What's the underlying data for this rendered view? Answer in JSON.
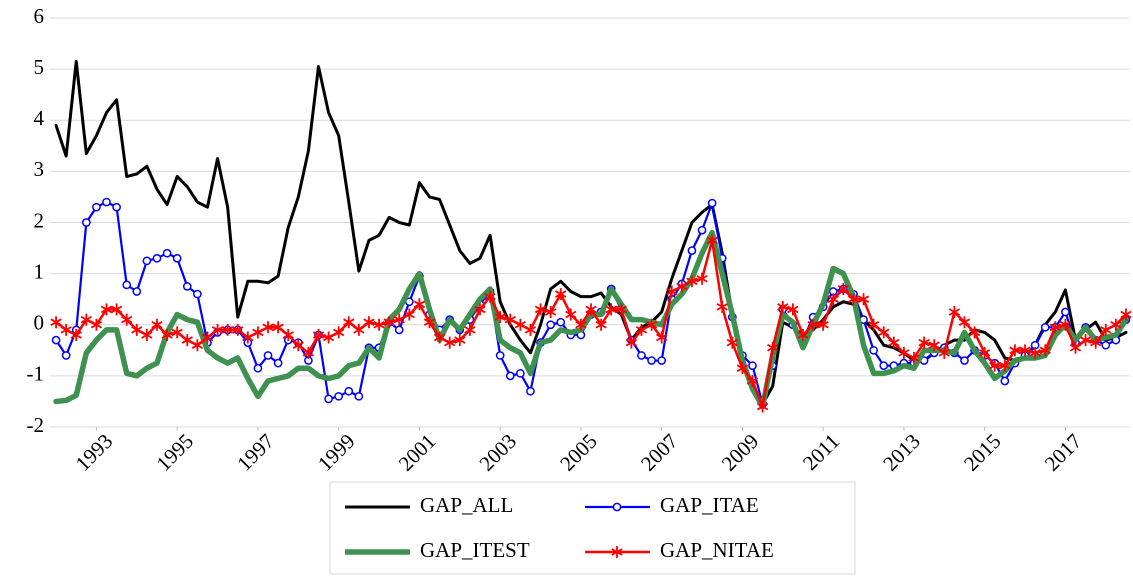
{
  "chart_data": {
    "type": "line",
    "x": [
      1992,
      1992.25,
      1992.5,
      1992.75,
      1993,
      1993.25,
      1993.5,
      1993.75,
      1994,
      1994.25,
      1994.5,
      1994.75,
      1995,
      1995.25,
      1995.5,
      1995.75,
      1996,
      1996.25,
      1996.5,
      1996.75,
      1997,
      1997.25,
      1997.5,
      1997.75,
      1998,
      1998.25,
      1998.5,
      1998.75,
      1999,
      1999.25,
      1999.5,
      1999.75,
      2000,
      2000.25,
      2000.5,
      2000.75,
      2001,
      2001.25,
      2001.5,
      2001.75,
      2002,
      2002.25,
      2002.5,
      2002.75,
      2003,
      2003.25,
      2003.5,
      2003.75,
      2004,
      2004.25,
      2004.5,
      2004.75,
      2005,
      2005.25,
      2005.5,
      2005.75,
      2006,
      2006.25,
      2006.5,
      2006.75,
      2007,
      2007.25,
      2007.5,
      2007.75,
      2008,
      2008.25,
      2008.5,
      2008.75,
      2009,
      2009.25,
      2009.5,
      2009.75,
      2010,
      2010.25,
      2010.5,
      2010.75,
      2011,
      2011.25,
      2011.5,
      2011.75,
      2012,
      2012.25,
      2012.5,
      2012.75,
      2013,
      2013.25,
      2013.5,
      2013.75,
      2014,
      2014.25,
      2014.5,
      2014.75,
      2015,
      2015.25,
      2015.5,
      2015.75,
      2016,
      2016.25,
      2016.5,
      2016.75,
      2017,
      2017.25,
      2017.5,
      2017.75,
      2018,
      2018.25,
      2018.5
    ],
    "series": [
      {
        "name": "GAP_ALL",
        "color": "#000000",
        "values": [
          3.9,
          3.3,
          5.15,
          3.35,
          3.7,
          4.15,
          4.4,
          2.9,
          2.95,
          3.1,
          2.65,
          2.35,
          2.9,
          2.7,
          2.4,
          2.3,
          3.25,
          2.3,
          0.15,
          0.85,
          0.85,
          0.82,
          0.95,
          1.9,
          2.5,
          3.4,
          5.05,
          4.15,
          3.7,
          2.4,
          1.05,
          1.65,
          1.75,
          2.1,
          2.0,
          1.95,
          2.78,
          2.5,
          2.45,
          1.95,
          1.45,
          1.2,
          1.3,
          1.75,
          0.45,
          0.0,
          -0.3,
          -0.55,
          0.0,
          0.7,
          0.85,
          0.65,
          0.55,
          0.55,
          0.62,
          0.35,
          0.2,
          -0.3,
          -0.05,
          0.05,
          0.25,
          0.9,
          1.45,
          2.0,
          2.2,
          2.35,
          1.4,
          0.2,
          -0.6,
          -1.3,
          -1.55,
          -1.2,
          0.05,
          -0.05,
          -0.2,
          -0.1,
          0.1,
          0.35,
          0.45,
          0.4,
          0.1,
          -0.1,
          -0.4,
          -0.45,
          -0.55,
          -0.7,
          -0.7,
          -0.55,
          -0.4,
          -0.3,
          -0.3,
          -0.1,
          -0.15,
          -0.3,
          -0.65,
          -0.7,
          -0.65,
          -0.4,
          0.0,
          0.25,
          0.68,
          -0.3,
          -0.1,
          0.05,
          -0.3,
          -0.25,
          -0.15
        ]
      },
      {
        "name": "GAP_ITAE",
        "color": "#0000ff",
        "marker": "circle",
        "values": [
          -0.3,
          -0.6,
          -0.1,
          2.0,
          2.3,
          2.4,
          2.3,
          0.78,
          0.65,
          1.25,
          1.3,
          1.4,
          1.3,
          0.75,
          0.6,
          -0.35,
          -0.15,
          -0.1,
          -0.1,
          -0.35,
          -0.85,
          -0.6,
          -0.75,
          -0.3,
          -0.35,
          -0.7,
          -0.2,
          -1.45,
          -1.4,
          -1.3,
          -1.4,
          -0.45,
          -0.45,
          0.05,
          -0.1,
          0.45,
          0.95,
          0.2,
          -0.1,
          0.1,
          -0.1,
          0.1,
          0.4,
          0.65,
          -0.6,
          -1.0,
          -0.95,
          -1.3,
          -0.35,
          0.0,
          0.05,
          -0.2,
          -0.2,
          0.2,
          0.25,
          0.7,
          0.3,
          -0.3,
          -0.6,
          -0.7,
          -0.7,
          0.5,
          0.8,
          1.45,
          1.85,
          2.38,
          1.3,
          0.15,
          -0.6,
          -0.8,
          -1.55,
          -0.8,
          0.3,
          0.0,
          -0.3,
          0.15,
          0.35,
          0.65,
          0.7,
          0.6,
          0.1,
          -0.5,
          -0.8,
          -0.8,
          -0.75,
          -0.75,
          -0.7,
          -0.55,
          -0.45,
          -0.55,
          -0.7,
          -0.5,
          -0.6,
          -0.75,
          -1.1,
          -0.75,
          -0.6,
          -0.4,
          -0.05,
          -0.05,
          0.25,
          -0.35,
          -0.05,
          -0.3,
          -0.4,
          -0.3,
          0.1
        ]
      },
      {
        "name": "GAP_ITEST",
        "color": "#3f9150",
        "values": [
          -1.5,
          -1.48,
          -1.38,
          -0.55,
          -0.3,
          -0.1,
          -0.1,
          -0.95,
          -1.0,
          -0.85,
          -0.75,
          -0.15,
          0.2,
          0.1,
          0.05,
          -0.5,
          -0.65,
          -0.75,
          -0.65,
          -1.05,
          -1.4,
          -1.1,
          -1.05,
          -1.0,
          -0.85,
          -0.85,
          -1.0,
          -1.05,
          -1.0,
          -0.8,
          -0.75,
          -0.45,
          -0.65,
          0.1,
          0.3,
          0.7,
          1.0,
          0.3,
          -0.3,
          0.1,
          -0.1,
          0.2,
          0.5,
          0.7,
          -0.3,
          -0.45,
          -0.55,
          -0.95,
          -0.35,
          -0.3,
          -0.1,
          -0.15,
          -0.1,
          0.2,
          0.2,
          0.7,
          0.4,
          0.1,
          0.1,
          0.05,
          0.0,
          0.4,
          0.6,
          0.9,
          1.4,
          1.8,
          1.0,
          0.2,
          -0.7,
          -1.25,
          -1.6,
          -0.6,
          0.2,
          0.05,
          -0.45,
          0.0,
          0.4,
          1.1,
          1.0,
          0.55,
          -0.4,
          -0.95,
          -0.95,
          -0.9,
          -0.8,
          -0.85,
          -0.5,
          -0.5,
          -0.5,
          -0.55,
          -0.15,
          -0.5,
          -0.75,
          -1.05,
          -0.9,
          -0.7,
          -0.65,
          -0.65,
          -0.6,
          -0.2,
          0.0,
          -0.3,
          -0.05,
          -0.3,
          -0.25,
          -0.2,
          0.1
        ]
      },
      {
        "name": "GAP_NITAE",
        "color": "#ff0000",
        "marker": "star",
        "values": [
          0.05,
          -0.1,
          -0.2,
          0.1,
          0.0,
          0.3,
          0.3,
          0.1,
          -0.1,
          -0.2,
          0.0,
          -0.2,
          -0.15,
          -0.3,
          -0.4,
          -0.25,
          -0.1,
          -0.1,
          -0.1,
          -0.25,
          -0.15,
          -0.05,
          -0.05,
          -0.2,
          -0.4,
          -0.55,
          -0.2,
          -0.25,
          -0.15,
          0.05,
          -0.1,
          0.05,
          0.0,
          0.05,
          0.1,
          0.2,
          0.4,
          0.05,
          -0.25,
          -0.35,
          -0.3,
          -0.1,
          0.3,
          0.55,
          0.15,
          0.1,
          0.0,
          -0.1,
          0.3,
          0.25,
          0.6,
          0.2,
          0.0,
          0.3,
          0.0,
          0.3,
          0.3,
          -0.35,
          -0.1,
          0.0,
          -0.25,
          0.65,
          0.75,
          0.85,
          0.9,
          1.65,
          0.35,
          -0.35,
          -0.85,
          -1.1,
          -1.6,
          -0.45,
          0.35,
          0.3,
          -0.2,
          0.0,
          0.0,
          0.5,
          0.7,
          0.5,
          0.5,
          0.0,
          -0.15,
          -0.35,
          -0.55,
          -0.65,
          -0.35,
          -0.4,
          -0.55,
          0.25,
          0.05,
          -0.15,
          -0.55,
          -0.8,
          -0.8,
          -0.5,
          -0.5,
          -0.55,
          -0.5,
          -0.05,
          0.0,
          -0.45,
          -0.3,
          -0.35,
          -0.1,
          0.0,
          0.2
        ]
      }
    ],
    "xlim": [
      1991.85,
      2018.6
    ],
    "xticks": [
      1993,
      1995,
      1997,
      1999,
      2001,
      2003,
      2005,
      2007,
      2009,
      2011,
      2013,
      2015,
      2017
    ],
    "ylim": [
      -2,
      6
    ],
    "yticks": [
      -2,
      -1,
      0,
      1,
      2,
      3,
      4,
      5,
      6
    ],
    "grid": true,
    "legend": "bottom"
  }
}
